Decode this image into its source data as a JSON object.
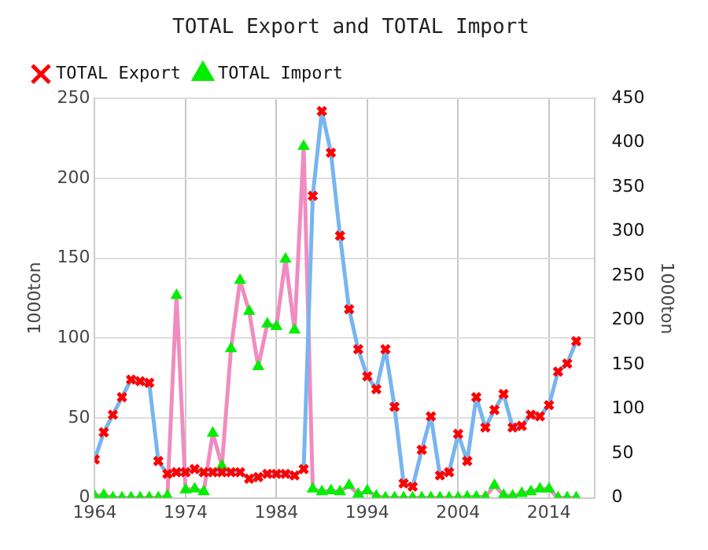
{
  "chart_data": {
    "type": "line",
    "title": "TOTAL Export and TOTAL Import",
    "ylabel": "1000ton",
    "y2label": "1000ton",
    "x": [
      1964,
      1965,
      1966,
      1967,
      1968,
      1969,
      1970,
      1971,
      1972,
      1973,
      1974,
      1975,
      1976,
      1977,
      1978,
      1979,
      1980,
      1981,
      1982,
      1983,
      1984,
      1985,
      1986,
      1987,
      1988,
      1989,
      1990,
      1991,
      1992,
      1993,
      1994,
      1995,
      1996,
      1997,
      1998,
      1999,
      2000,
      2001,
      2002,
      2003,
      2004,
      2005,
      2006,
      2007,
      2008,
      2009,
      2010,
      2011,
      2012,
      2013,
      2014,
      2015,
      2016,
      2017
    ],
    "series": [
      {
        "name": "TOTAL Export",
        "color": "#77b5f0",
        "colors": [
          "#ff0000",
          "#ff0000",
          "#ff0000",
          "#ff0000",
          "#ff0000",
          "#ff0000",
          "#ff0000",
          "#ff0000",
          "#ff0000",
          "#ff0000",
          "#ff0000",
          "#ff0000",
          "#ff0000",
          "#ff0000",
          "#ff0000",
          "#ff0000",
          "#ff0000",
          "#ff0000",
          "#ff0000",
          "#ff0000",
          "#ff0000",
          "#ff0000",
          "#ff0000",
          "#ff0000",
          "#ff0000",
          "#ff0000",
          "#ff0000",
          "#ff0000",
          "#ff0000",
          "#ff0000",
          "#ff0000",
          "#ff0000",
          "#ff0000",
          "#ff0000",
          "#ff0000",
          "#ff0000",
          "#ff0000",
          "#ff0000",
          "#ff0000",
          "#ff0000",
          "#ff0000",
          "#ff0000",
          "#ff0000",
          "#ff0000",
          "#ff0000",
          "#ff0000",
          "#ff0000",
          "#ff0000",
          "#ff0000",
          "#ff0000",
          "#ff0000",
          "#ff0000",
          "#ff0000",
          "#ff0000"
        ],
        "marker": "cross",
        "values": [
          24,
          41,
          52,
          63,
          74,
          73,
          72,
          23,
          15,
          16,
          16,
          18,
          16,
          16,
          16,
          16,
          16,
          12,
          13,
          15,
          15,
          15,
          14,
          18,
          189,
          242,
          216,
          164,
          118,
          93,
          76,
          68,
          93,
          57,
          9,
          7,
          30,
          51,
          14,
          16,
          40,
          23,
          63,
          44,
          55,
          65,
          44,
          45,
          52,
          51,
          58,
          79,
          84,
          98
        ]
      },
      {
        "name": "TOTAL Import",
        "color": "#f08cc0",
        "colors": [
          "#00ee00",
          "#00ee00",
          "#00ee00",
          "#00ee00",
          "#00ee00",
          "#00ee00",
          "#00ee00",
          "#00ee00",
          "#00ee00",
          "#00ee00",
          "#00ee00",
          "#00ee00",
          "#00ee00",
          "#00ee00",
          "#00ee00",
          "#00ee00",
          "#00ee00",
          "#00ee00",
          "#00ee00",
          "#00ee00",
          "#00ee00",
          "#00ee00",
          "#00ee00",
          "#00ee00",
          "#00ee00",
          "#00ee00",
          "#00ee00",
          "#00ee00",
          "#00ee00",
          "#00ee00",
          "#00ee00",
          "#00ee00",
          "#00ee00",
          "#00ee00",
          "#00ee00",
          "#00ee00",
          "#00ee00",
          "#00ee00",
          "#00ee00",
          "#00ee00",
          "#00ee00",
          "#00ee00",
          "#00ee00",
          "#00ee00",
          "#00ee00",
          "#00ee00",
          "#00ee00",
          "#00ee00",
          "#00ee00",
          "#00ee00",
          "#00ee00",
          "#00ee00",
          "#00ee00",
          "#00ee00"
        ],
        "marker": "triangle",
        "axis": "y2",
        "values": [
          2,
          3,
          0,
          0,
          0,
          0,
          0,
          0,
          2,
          228,
          9,
          10,
          7,
          73,
          36,
          168,
          245,
          210,
          148,
          196,
          193,
          269,
          189,
          396,
          10,
          7,
          8,
          7,
          14,
          4,
          8,
          2,
          0,
          0,
          0,
          0,
          0,
          0,
          0,
          0,
          0,
          1,
          1,
          1,
          14,
          3,
          2,
          5,
          7,
          10,
          10,
          0,
          0,
          0
        ]
      }
    ],
    "xlim": [
      1964,
      2019
    ],
    "xticks": [
      1964,
      1974,
      1984,
      1994,
      2004,
      2014
    ],
    "ylim": [
      0,
      250
    ],
    "yticks": [
      0,
      50,
      100,
      150,
      200,
      250
    ],
    "y2lim": [
      0,
      450
    ],
    "y2ticks": [
      0,
      50,
      100,
      150,
      200,
      250,
      300,
      350,
      400,
      450
    ],
    "grid": true,
    "legend": "top left"
  }
}
